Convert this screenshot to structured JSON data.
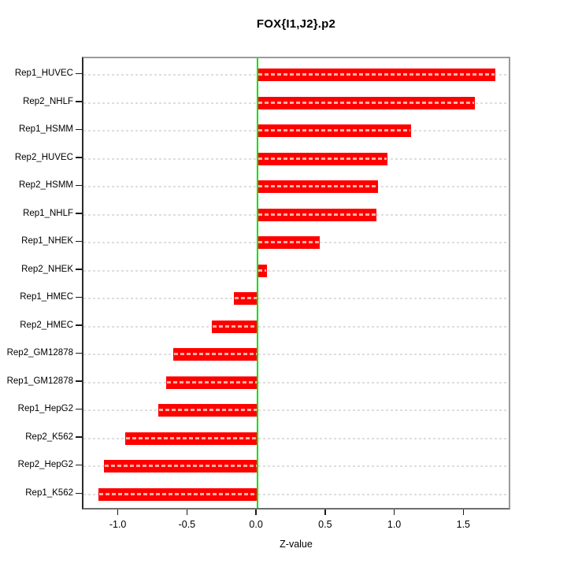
{
  "title": "FOX{I1,J2}.p2",
  "chart_data": {
    "type": "bar",
    "orientation": "horizontal",
    "title": "FOX{I1,J2}.p2",
    "xlabel": "Z-value",
    "ylabel": "",
    "categories": [
      "Rep1_HUVEC",
      "Rep2_NHLF",
      "Rep1_HSMM",
      "Rep2_HUVEC",
      "Rep2_HSMM",
      "Rep1_NHLF",
      "Rep1_NHEK",
      "Rep2_NHEK",
      "Rep1_HMEC",
      "Rep2_HMEC",
      "Rep2_GM12878",
      "Rep1_GM12878",
      "Rep1_HepG2",
      "Rep2_K562",
      "Rep2_HepG2",
      "Rep1_K562"
    ],
    "values": [
      1.72,
      1.57,
      1.11,
      0.94,
      0.87,
      0.86,
      0.45,
      0.07,
      -0.17,
      -0.33,
      -0.61,
      -0.66,
      -0.72,
      -0.96,
      -1.11,
      -1.15
    ],
    "xlim": [
      -1.26,
      1.84
    ],
    "x_ticks": [
      -1.0,
      -0.5,
      0.0,
      0.5,
      1.0,
      1.5
    ],
    "x_tick_labels": [
      "-1.0",
      "-0.5",
      "0.0",
      "0.5",
      "1.0",
      "1.5"
    ],
    "grid": true,
    "grid_style": "dashed",
    "legend": false,
    "bar_color": "#ff0000",
    "bar_dash_color": "#ffb0a6",
    "zero_line_color": "#00e000",
    "grid_color": "#dedede",
    "box_color": "#9b9b9b"
  }
}
